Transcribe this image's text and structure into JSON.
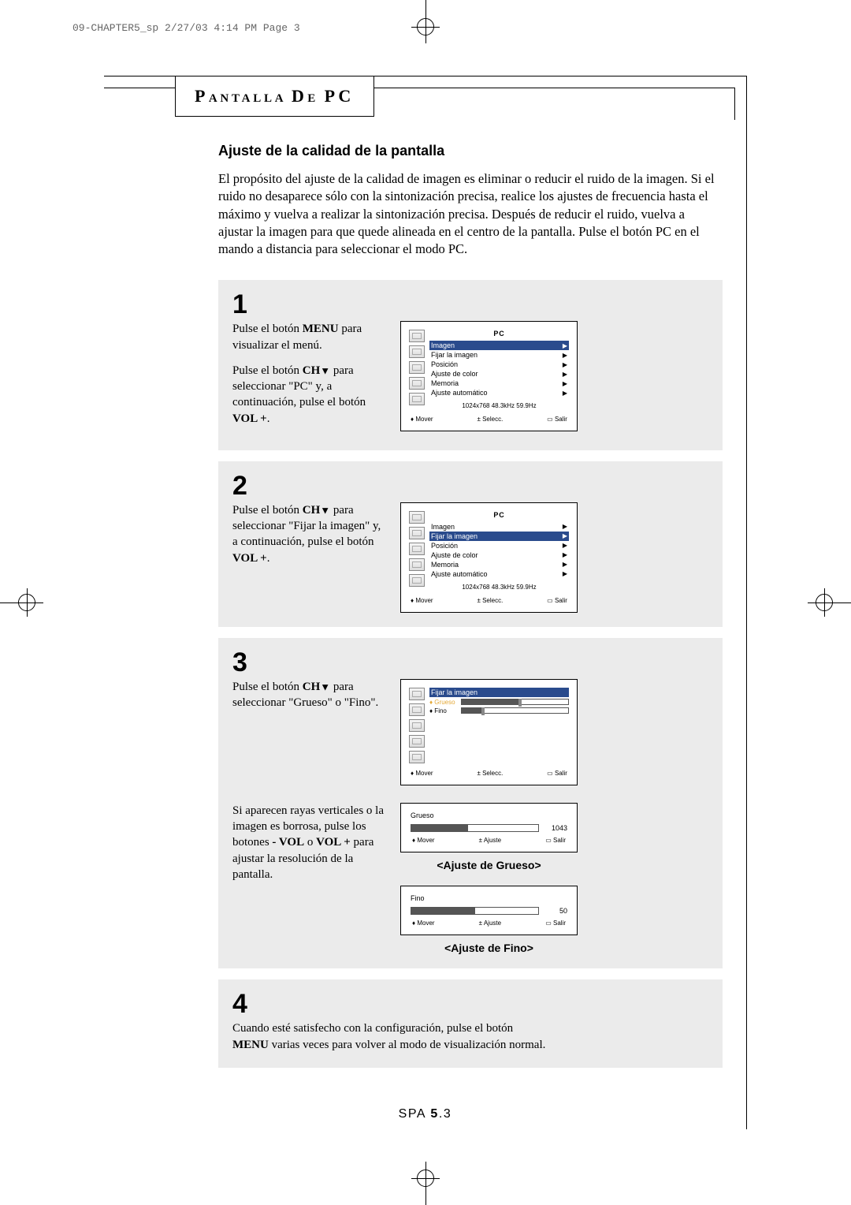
{
  "print_header": "09-CHAPTER5_sp  2/27/03  4:14 PM  Page 3",
  "chapter_title_parts": {
    "p1": "P",
    "s1": "ANTALLA ",
    "p2": "D",
    "s2": "E ",
    "p3": "PC"
  },
  "section_title": "Ajuste de la calidad de la pantalla",
  "intro": "El propósito del ajuste de la calidad de imagen es eliminar o reducir el ruido de la imagen. Si el ruido no desaparece sólo con la sintonización precisa, realice los ajustes de frecuencia hasta el máximo y vuelva a realizar la sintonización precisa. Después de reducir el ruido, vuelva a ajustar la imagen para que quede alineada en el centro de la pantalla. Pulse el botón PC en el mando a distancia para seleccionar el modo PC.",
  "steps": {
    "s1": {
      "num": "1",
      "para1_a": "Pulse el botón ",
      "para1_b": "MENU",
      "para1_c": " para visualizar el menú.",
      "para2_a": "Pulse el botón ",
      "para2_b": "CH",
      "para2_c": " para seleccionar \"PC\" y, a continuación, pulse el botón ",
      "para2_d": "VOL +",
      "para2_e": "."
    },
    "s2": {
      "num": "2",
      "para_a": "Pulse el botón ",
      "para_b": "CH",
      "para_c": " para seleccionar \"Fijar la imagen\" y, a continuación, pulse el botón ",
      "para_d": "VOL +",
      "para_e": "."
    },
    "s3": {
      "num": "3",
      "para_a": "Pulse el botón ",
      "para_b": "CH",
      "para_c": " para seleccionar \"Grueso\" o \"Fino\"."
    },
    "s3b": {
      "para_a": "Si aparecen rayas verticales o la imagen es borrosa, pulse los botones ",
      "para_b": "- VOL",
      "para_c": " o ",
      "para_d": "VOL +",
      "para_e": " para ajustar la resolución de la pantalla."
    },
    "s4": {
      "num": "4",
      "para_a": "Cuando esté satisfecho con la configuración, pulse el botón ",
      "para_b": "MENU",
      "para_c": " varias veces para volver al modo de visualización normal."
    }
  },
  "osd": {
    "title": "PC",
    "items": [
      "Imagen",
      "Fijar la imagen",
      "Posición",
      "Ajuste de color",
      "Memoria",
      "Ajuste automático"
    ],
    "selected_step1": 0,
    "selected_step2": 1,
    "info": "1024x768   48.3kHz 59.9Hz",
    "footer": {
      "move": "Mover",
      "select": "Selecc.",
      "adjust": "Ajuste",
      "exit": "Salir"
    },
    "footer_icons": {
      "move": "♦",
      "select": "±",
      "exit": "▭"
    }
  },
  "osd_step3": {
    "heading": "Fijar la imagen",
    "rows": [
      {
        "label": "Grueso",
        "fill_pct": 55,
        "selected": true
      },
      {
        "label": "Fino",
        "fill_pct": 20,
        "selected": false
      }
    ]
  },
  "adjust_grueso": {
    "label": "Grueso",
    "value": "1043",
    "fill_pct": 45,
    "caption": "<Ajuste de Grueso>"
  },
  "adjust_fino": {
    "label": "Fino",
    "value": "50",
    "fill_pct": 50,
    "caption": "<Ajuste de Fino>"
  },
  "page_footer": {
    "prefix": "SPA ",
    "bold": "5",
    "suffix": ".3"
  },
  "colors": {
    "page_bg": "#ffffff",
    "block_bg": "#ebebeb",
    "osd_sel_bg": "#2a4b8d",
    "osd_sel_fg": "#ffffff",
    "slider_sel_label": "#e4a938"
  }
}
